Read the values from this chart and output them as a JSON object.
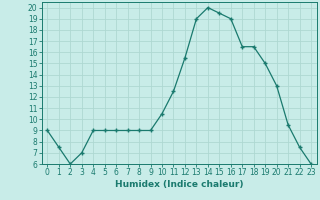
{
  "x": [
    0,
    1,
    2,
    3,
    4,
    5,
    6,
    7,
    8,
    9,
    10,
    11,
    12,
    13,
    14,
    15,
    16,
    17,
    18,
    19,
    20,
    21,
    22,
    23
  ],
  "y": [
    9,
    7.5,
    6,
    7,
    9,
    9,
    9,
    9,
    9,
    9,
    10.5,
    12.5,
    15.5,
    19,
    20,
    19.5,
    19,
    16.5,
    16.5,
    15,
    13,
    9.5,
    7.5,
    6
  ],
  "xlabel": "Humidex (Indice chaleur)",
  "xlim_min": -0.5,
  "xlim_max": 23.5,
  "ylim_min": 6,
  "ylim_max": 20.5,
  "yticks": [
    6,
    7,
    8,
    9,
    10,
    11,
    12,
    13,
    14,
    15,
    16,
    17,
    18,
    19,
    20
  ],
  "xticks": [
    0,
    1,
    2,
    3,
    4,
    5,
    6,
    7,
    8,
    9,
    10,
    11,
    12,
    13,
    14,
    15,
    16,
    17,
    18,
    19,
    20,
    21,
    22,
    23
  ],
  "line_color": "#1a7a6e",
  "marker_color": "#1a7a6e",
  "bg_color": "#c8ece8",
  "grid_color": "#aed8d2",
  "tick_fontsize": 5.5,
  "label_fontsize": 6.5
}
